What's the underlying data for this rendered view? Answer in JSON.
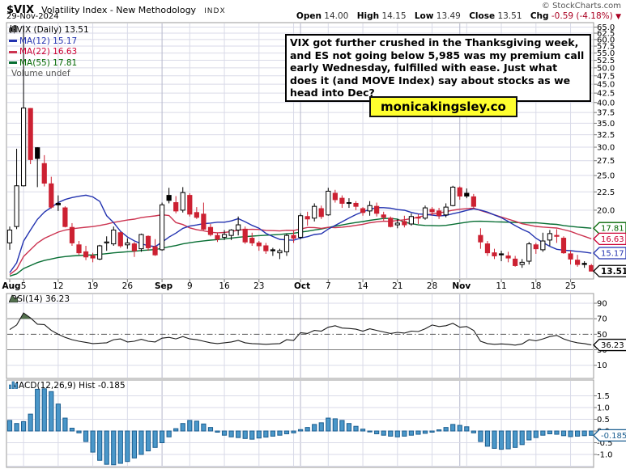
{
  "header": {
    "symbol": "$VIX",
    "description": "Volatility Index - New Methodology",
    "exchange": "INDX",
    "date": "29-Nov-2024",
    "copyright": "© StockCharts.com",
    "quote": {
      "open_label": "Open",
      "open": "14.00",
      "high_label": "High",
      "high": "14.15",
      "low_label": "Low",
      "low": "13.49",
      "close_label": "Close",
      "close": "13.51",
      "chg_label": "Chg",
      "chg": "-0.59 (-4.18%)",
      "direction": "▼"
    }
  },
  "legend": {
    "main": "$VIX (Daily) 13.51",
    "ma12": "MA(12) 15.17",
    "ma22": "MA(22) 16.63",
    "ma55": "MA(55) 17.81",
    "volume": "Volume undef",
    "rsi": "RSI(14) 36.23",
    "macd": "MACD(12,26,9) Hist -0.185"
  },
  "annotation": {
    "text": "VIX got further crushed in the Thanksgiving week, and ES not going below 5,985 was my premium call early Wednesday, fulfilled with ease. Just what does it (and MOVE Index) say about stocks as we head into Dec?"
  },
  "watermark": {
    "text": "monicakingsley.co"
  },
  "theme": {
    "grid": "#d9dae8",
    "grid_month": "#b6b8cc",
    "panel_border": "#999999",
    "candle_down": "#cc2132",
    "candle_up_outline": "#000000",
    "ma12": "#2333b0",
    "ma22": "#cc3350",
    "ma55": "#076e33",
    "legend_red": "#cc0033",
    "legend_green": "#006600",
    "legend_blue": "#2333b0",
    "volume_gray": "#555555",
    "rsi_line": "#1a1a1a",
    "rsi_fill": "#53714e",
    "rsi_level": "#808080",
    "rsi_mid": "#555555",
    "macd_fill": "#4a97c9",
    "macd_stroke": "#1b5e90",
    "tag_close": "#000000",
    "chg_red": "#aa0022"
  },
  "chart_data": {
    "type": "candlestick",
    "symbol": "$VIX",
    "timeframe": "Daily",
    "last_close": 13.51,
    "y_axis": {
      "scale": "log",
      "tick_min": 20,
      "tick_max": 65,
      "tick_step": 2.5
    },
    "dates": [
      "Aug 1",
      "Aug 2",
      "Aug 5",
      "Aug 6",
      "Aug 7",
      "Aug 8",
      "Aug 9",
      "Aug 12",
      "Aug 13",
      "Aug 14",
      "Aug 15",
      "Aug 16",
      "Aug 19",
      "Aug 20",
      "Aug 21",
      "Aug 22",
      "Aug 23",
      "Aug 26",
      "Aug 27",
      "Aug 28",
      "Aug 29",
      "Aug 30",
      "Sep 3",
      "Sep 4",
      "Sep 5",
      "Sep 6",
      "Sep 9",
      "Sep 10",
      "Sep 11",
      "Sep 12",
      "Sep 13",
      "Sep 16",
      "Sep 17",
      "Sep 18",
      "Sep 19",
      "Sep 20",
      "Sep 23",
      "Sep 24",
      "Sep 25",
      "Sep 26",
      "Sep 27",
      "Sep 30",
      "Oct 1",
      "Oct 2",
      "Oct 3",
      "Oct 4",
      "Oct 7",
      "Oct 8",
      "Oct 9",
      "Oct 10",
      "Oct 11",
      "Oct 14",
      "Oct 15",
      "Oct 16",
      "Oct 17",
      "Oct 18",
      "Oct 21",
      "Oct 22",
      "Oct 23",
      "Oct 24",
      "Oct 25",
      "Oct 28",
      "Oct 29",
      "Oct 30",
      "Oct 31",
      "Nov 1",
      "Nov 4",
      "Nov 5",
      "Nov 6",
      "Nov 7",
      "Nov 8",
      "Nov 11",
      "Nov 12",
      "Nov 13",
      "Nov 14",
      "Nov 15",
      "Nov 18",
      "Nov 19",
      "Nov 20",
      "Nov 21",
      "Nov 22",
      "Nov 25",
      "Nov 26",
      "Nov 27",
      "Nov 29"
    ],
    "ohlc": [
      [
        16.2,
        18.0,
        15.5,
        17.6
      ],
      [
        18.0,
        29.7,
        17.7,
        23.4
      ],
      [
        23.4,
        65.7,
        23.3,
        38.6
      ],
      [
        38.5,
        38.6,
        26.9,
        27.7
      ],
      [
        29.9,
        30.0,
        23.2,
        27.9
      ],
      [
        27.0,
        28.5,
        23.3,
        23.8
      ],
      [
        23.7,
        24.8,
        20.2,
        20.4
      ],
      [
        20.9,
        22.0,
        19.9,
        20.7
      ],
      [
        20.3,
        20.5,
        17.9,
        18.0
      ],
      [
        17.9,
        18.4,
        15.9,
        16.2
      ],
      [
        16.0,
        16.4,
        15.0,
        15.2
      ],
      [
        15.3,
        15.9,
        14.5,
        14.8
      ],
      [
        14.9,
        15.2,
        14.3,
        14.7
      ],
      [
        14.6,
        16.0,
        14.5,
        15.9
      ],
      [
        16.2,
        16.9,
        15.4,
        16.3
      ],
      [
        16.1,
        18.0,
        15.9,
        17.6
      ],
      [
        17.3,
        17.4,
        15.7,
        15.9
      ],
      [
        16.0,
        16.7,
        15.6,
        16.2
      ],
      [
        16.1,
        16.3,
        14.8,
        15.4
      ],
      [
        15.6,
        17.2,
        15.3,
        17.1
      ],
      [
        16.9,
        17.0,
        15.4,
        15.7
      ],
      [
        15.8,
        16.6,
        14.9,
        15.0
      ],
      [
        15.5,
        21.0,
        15.4,
        20.7
      ],
      [
        22.0,
        23.1,
        20.9,
        21.3
      ],
      [
        21.0,
        21.9,
        19.6,
        19.9
      ],
      [
        20.0,
        23.2,
        19.7,
        22.4
      ],
      [
        22.0,
        22.3,
        19.2,
        19.5
      ],
      [
        19.7,
        20.4,
        18.9,
        19.1
      ],
      [
        19.5,
        21.0,
        17.6,
        17.7
      ],
      [
        17.9,
        18.3,
        16.9,
        17.1
      ],
      [
        17.0,
        17.3,
        16.3,
        16.6
      ],
      [
        16.8,
        17.6,
        16.5,
        17.1
      ],
      [
        17.0,
        17.7,
        16.5,
        17.6
      ],
      [
        17.6,
        19.2,
        17.0,
        18.2
      ],
      [
        17.7,
        18.0,
        16.1,
        16.3
      ],
      [
        16.7,
        17.3,
        15.9,
        16.2
      ],
      [
        16.2,
        16.4,
        15.4,
        15.9
      ],
      [
        15.9,
        16.2,
        15.1,
        15.4
      ],
      [
        15.5,
        15.7,
        14.9,
        15.4
      ],
      [
        15.2,
        15.6,
        14.6,
        15.4
      ],
      [
        15.3,
        17.2,
        14.9,
        17.0
      ],
      [
        17.0,
        17.5,
        16.2,
        16.7
      ],
      [
        16.8,
        19.6,
        16.6,
        19.3
      ],
      [
        19.2,
        19.8,
        18.1,
        18.9
      ],
      [
        19.0,
        20.9,
        18.6,
        20.5
      ],
      [
        20.2,
        20.6,
        18.9,
        19.2
      ],
      [
        19.4,
        23.1,
        19.3,
        22.6
      ],
      [
        22.3,
        22.8,
        21.0,
        21.4
      ],
      [
        21.6,
        22.0,
        20.3,
        20.9
      ],
      [
        21.0,
        21.6,
        20.3,
        20.9
      ],
      [
        20.9,
        21.2,
        20.0,
        20.5
      ],
      [
        20.2,
        20.4,
        19.3,
        19.7
      ],
      [
        19.9,
        21.2,
        19.3,
        20.6
      ],
      [
        20.5,
        21.0,
        19.2,
        19.6
      ],
      [
        19.4,
        19.8,
        18.7,
        19.1
      ],
      [
        19.0,
        19.2,
        17.9,
        18.0
      ],
      [
        18.2,
        18.9,
        17.8,
        18.4
      ],
      [
        18.6,
        19.3,
        17.9,
        18.2
      ],
      [
        18.3,
        19.6,
        18.1,
        19.2
      ],
      [
        19.1,
        19.5,
        18.3,
        19.1
      ],
      [
        19.0,
        20.6,
        18.8,
        20.3
      ],
      [
        20.1,
        20.4,
        19.3,
        19.8
      ],
      [
        19.9,
        20.3,
        18.9,
        19.3
      ],
      [
        19.4,
        20.9,
        19.1,
        20.4
      ],
      [
        20.6,
        23.4,
        20.5,
        23.2
      ],
      [
        23.1,
        23.3,
        21.4,
        21.9
      ],
      [
        22.3,
        23.0,
        21.6,
        21.9
      ],
      [
        21.8,
        22.2,
        20.2,
        20.5
      ],
      [
        17.0,
        17.8,
        15.6,
        16.3
      ],
      [
        16.1,
        16.4,
        14.9,
        15.2
      ],
      [
        15.2,
        15.6,
        14.6,
        14.9
      ],
      [
        15.1,
        15.4,
        14.4,
        15.0
      ],
      [
        14.9,
        15.3,
        14.3,
        14.7
      ],
      [
        14.6,
        14.9,
        13.9,
        14.0
      ],
      [
        14.1,
        14.6,
        13.8,
        14.3
      ],
      [
        14.4,
        16.3,
        14.1,
        16.1
      ],
      [
        16.0,
        16.2,
        15.1,
        15.6
      ],
      [
        15.5,
        17.3,
        15.3,
        16.4
      ],
      [
        16.5,
        17.6,
        15.9,
        17.2
      ],
      [
        17.0,
        17.7,
        16.2,
        16.9
      ],
      [
        16.7,
        16.9,
        15.1,
        15.2
      ],
      [
        15.1,
        15.4,
        14.1,
        14.6
      ],
      [
        14.5,
        15.0,
        13.9,
        14.1
      ],
      [
        14.2,
        14.4,
        13.8,
        14.1
      ],
      [
        14.0,
        14.15,
        13.49,
        13.51
      ]
    ],
    "overlays": [
      {
        "name": "MA(12)",
        "period": 12,
        "last": 15.17
      },
      {
        "name": "MA(22)",
        "period": 22,
        "last": 16.63
      },
      {
        "name": "MA(55)",
        "period": 55,
        "last": 17.81
      }
    ],
    "prehistory_pad": 13.0,
    "price_tags": [
      {
        "value": 17.81,
        "text": "17.81",
        "series": "ma55"
      },
      {
        "value": 16.63,
        "text": "16.63",
        "series": "ma22"
      },
      {
        "value": 15.17,
        "text": "15.17",
        "series": "ma12"
      },
      {
        "value": 13.51,
        "text": "13.51",
        "series": "close"
      }
    ],
    "x_ticks": [
      {
        "i": 0,
        "label": "Aug",
        "bold": true
      },
      {
        "i": 2,
        "label": "5"
      },
      {
        "i": 7,
        "label": "12"
      },
      {
        "i": 12,
        "label": "19"
      },
      {
        "i": 17,
        "label": "26"
      },
      {
        "i": 22,
        "label": "Sep",
        "bold": true
      },
      {
        "i": 26,
        "label": "9"
      },
      {
        "i": 31,
        "label": "16"
      },
      {
        "i": 36,
        "label": "23"
      },
      {
        "i": 42,
        "label": "Oct",
        "bold": true
      },
      {
        "i": 46,
        "label": "7"
      },
      {
        "i": 51,
        "label": "14"
      },
      {
        "i": 56,
        "label": "21"
      },
      {
        "i": 61,
        "label": "28"
      },
      {
        "i": 65,
        "label": "Nov",
        "bold": true
      },
      {
        "i": 71,
        "label": "11"
      },
      {
        "i": 76,
        "label": "18"
      },
      {
        "i": 81,
        "label": "25"
      }
    ],
    "indicators": {
      "rsi": {
        "label": "RSI(14)",
        "last": 36.23,
        "ticks": [
          90,
          70,
          50,
          30,
          10
        ],
        "overbought": 70,
        "midline": 50,
        "oversold": 30,
        "values": [
          56,
          62,
          77.5,
          71,
          63,
          62.5,
          55,
          50,
          46,
          43,
          41,
          39.5,
          38,
          38.5,
          39,
          43,
          44,
          40,
          41,
          43.5,
          41,
          40,
          45,
          46,
          44,
          47,
          44,
          43,
          41,
          39,
          38,
          39,
          40,
          42,
          39,
          38,
          37.5,
          37,
          37.5,
          38,
          43,
          42,
          52,
          51,
          55,
          54,
          59,
          61,
          58,
          57.5,
          56.5,
          54,
          57,
          55,
          53,
          51,
          52.5,
          51.5,
          54,
          53.5,
          57,
          62,
          60,
          61,
          64,
          59,
          60,
          55,
          41,
          38,
          37,
          37.5,
          37,
          36,
          37.5,
          43,
          41.5,
          44,
          47,
          48.5,
          44,
          41,
          39,
          38,
          36.23
        ]
      },
      "macd_hist": {
        "label": "MACD(12,26,9) Hist",
        "last": -0.185,
        "ticks": [
          1.5,
          1.0,
          0.5,
          0.0,
          -0.5,
          -1.0
        ],
        "values": [
          0.45,
          0.32,
          0.4,
          0.72,
          1.78,
          1.8,
          1.68,
          1.15,
          0.55,
          0.12,
          -0.08,
          -0.45,
          -0.9,
          -1.25,
          -1.42,
          -1.44,
          -1.38,
          -1.3,
          -1.15,
          -1.0,
          -0.85,
          -0.7,
          -0.5,
          -0.25,
          0.1,
          0.32,
          0.45,
          0.42,
          0.3,
          0.15,
          -0.05,
          -0.18,
          -0.25,
          -0.28,
          -0.32,
          -0.35,
          -0.3,
          -0.26,
          -0.22,
          -0.18,
          -0.12,
          -0.08,
          0.06,
          0.15,
          0.28,
          0.35,
          0.55,
          0.52,
          0.45,
          0.32,
          0.2,
          0.08,
          -0.04,
          -0.12,
          -0.18,
          -0.22,
          -0.25,
          -0.22,
          -0.18,
          -0.14,
          -0.1,
          -0.05,
          0.05,
          0.15,
          0.28,
          0.24,
          0.18,
          -0.08,
          -0.45,
          -0.65,
          -0.74,
          -0.78,
          -0.76,
          -0.7,
          -0.58,
          -0.38,
          -0.28,
          -0.18,
          -0.12,
          -0.14,
          -0.2,
          -0.24,
          -0.22,
          -0.2,
          -0.185
        ]
      }
    }
  }
}
